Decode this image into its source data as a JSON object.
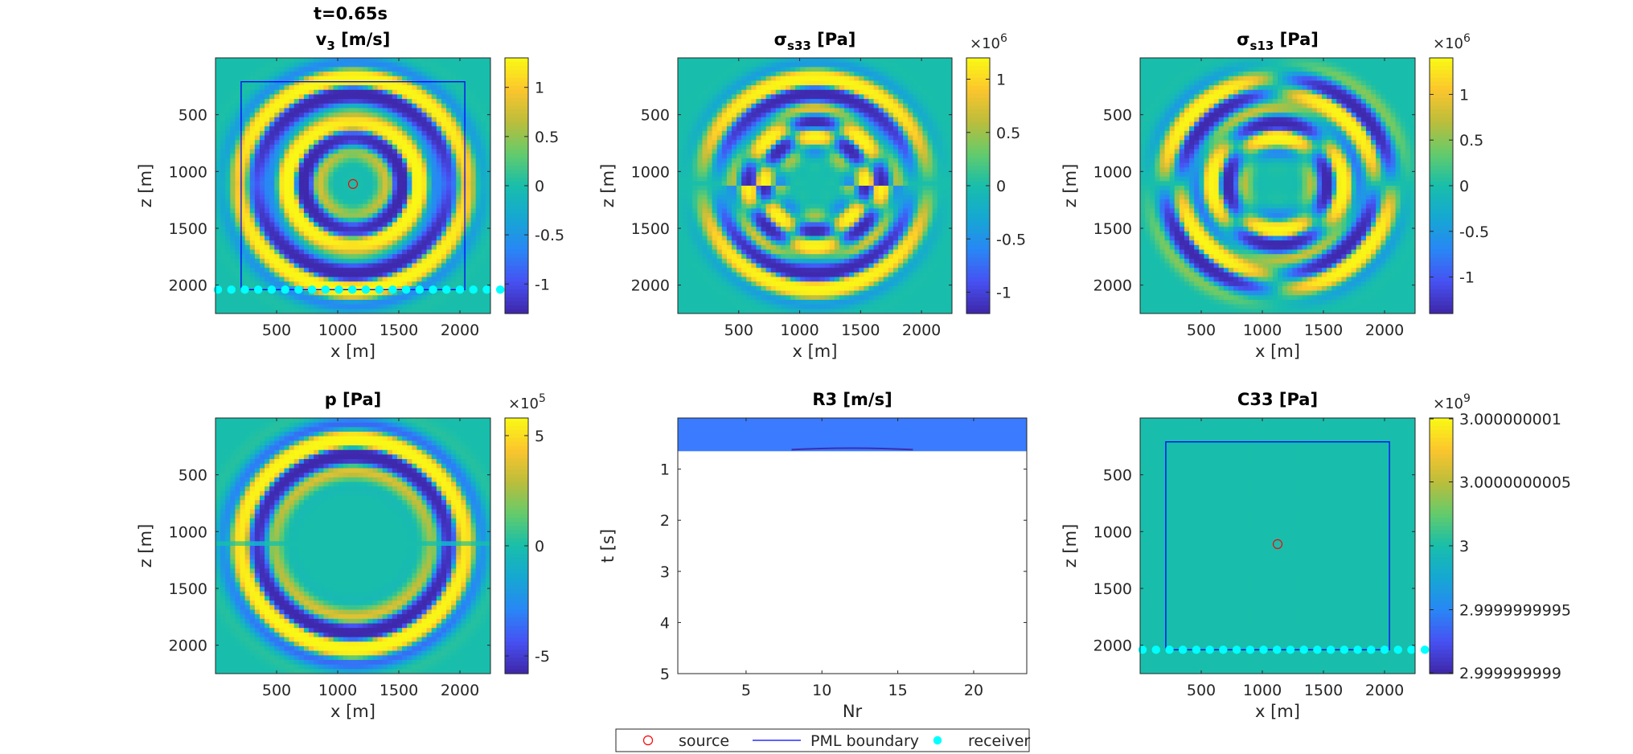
{
  "figure": {
    "title_line1": "t=0.65s",
    "legend": [
      {
        "label": "source",
        "marker": "circle-open",
        "color": "#ff0000"
      },
      {
        "label": "PML boundary",
        "marker": "line",
        "color": "#0000ff"
      },
      {
        "label": "receiver",
        "marker": "dot",
        "color": "#00ffff"
      }
    ],
    "colormap": "parula",
    "colors": {
      "background_field": "#1fbfa3",
      "source": "#ff0000",
      "pml": "#0000ff",
      "receiver": "#00ffff",
      "r3_band": "#3b7bff"
    }
  },
  "chart_data": [
    {
      "id": "v3",
      "type": "heatmap",
      "title": "v3 [m/s]",
      "title_main": "v",
      "title_sub": "3",
      "title_rest": " [m/s]",
      "xlabel": "x [m]",
      "ylabel": "z [m]",
      "xlim": [
        0,
        2250
      ],
      "ylim": [
        2250,
        0
      ],
      "xticks": [
        500,
        1000,
        1500,
        2000
      ],
      "yticks": [
        500,
        1000,
        1500,
        2000
      ],
      "colorbar": {
        "ticks": [
          1,
          0.5,
          0,
          -0.5,
          -1
        ],
        "labels": [
          "1",
          "0.5",
          "0",
          "-0.5",
          "-1"
        ],
        "range": [
          -1.3,
          1.3
        ],
        "exponent": ""
      },
      "field": "v3",
      "overlays": {
        "pml": [
          210,
          2040,
          210,
          2040
        ],
        "source": [
          1125,
          1110
        ],
        "receivers_z": 2040,
        "receivers_x0": 20,
        "receivers_dx": 110
      }
    },
    {
      "id": "s33",
      "type": "heatmap",
      "title": "σs33 [Pa]",
      "title_main": "σ",
      "title_sub": "s33",
      "title_rest": " [Pa]",
      "xlabel": "x [m]",
      "ylabel": "z [m]",
      "xlim": [
        0,
        2250
      ],
      "ylim": [
        2250,
        0
      ],
      "xticks": [
        500,
        1000,
        1500,
        2000
      ],
      "yticks": [
        500,
        1000,
        1500,
        2000
      ],
      "colorbar": {
        "ticks": [
          1,
          0.5,
          0,
          -0.5,
          -1
        ],
        "labels": [
          "1",
          "0.5",
          "0",
          "-0.5",
          "-1"
        ],
        "range": [
          -1.2,
          1.2
        ],
        "exponent": "6"
      },
      "field": "s33"
    },
    {
      "id": "s13",
      "type": "heatmap",
      "title": "σs13 [Pa]",
      "title_main": "σ",
      "title_sub": "s13",
      "title_rest": " [Pa]",
      "xlabel": "x [m]",
      "ylabel": "z [m]",
      "xlim": [
        0,
        2250
      ],
      "ylim": [
        2250,
        0
      ],
      "xticks": [
        500,
        1000,
        1500,
        2000
      ],
      "yticks": [
        500,
        1000,
        1500,
        2000
      ],
      "colorbar": {
        "ticks": [
          1,
          0.5,
          0,
          -0.5,
          -1
        ],
        "labels": [
          "1",
          "0.5",
          "0",
          "-0.5",
          "-1"
        ],
        "range": [
          -1.4,
          1.4
        ],
        "exponent": "6"
      },
      "field": "s13"
    },
    {
      "id": "p",
      "type": "heatmap",
      "title": "p [Pa]",
      "title_main": "p [Pa]",
      "title_sub": "",
      "title_rest": "",
      "xlabel": "x [m]",
      "ylabel": "z [m]",
      "xlim": [
        0,
        2250
      ],
      "ylim": [
        2250,
        0
      ],
      "xticks": [
        500,
        1000,
        1500,
        2000
      ],
      "yticks": [
        500,
        1000,
        1500,
        2000
      ],
      "colorbar": {
        "ticks": [
          5,
          0,
          -5
        ],
        "labels": [
          "5",
          "0",
          "-5"
        ],
        "range": [
          -5.8,
          5.8
        ],
        "exponent": "5"
      },
      "field": "p"
    },
    {
      "id": "r3",
      "type": "heatmap",
      "title": "R3 [m/s]",
      "title_main": "R3 [m/s]",
      "title_sub": "",
      "title_rest": "",
      "xlabel": "Nr",
      "ylabel": "t [s]",
      "xlim": [
        0.5,
        23.5
      ],
      "ylim": [
        5,
        0
      ],
      "xticks": [
        5,
        10,
        15,
        20
      ],
      "yticks": [
        1,
        2,
        3,
        4,
        5
      ],
      "recorded_until": 0.65
    },
    {
      "id": "c33",
      "type": "heatmap",
      "title": "C33 [Pa]",
      "title_main": "C33 [Pa]",
      "title_sub": "",
      "title_rest": "",
      "xlabel": "x [m]",
      "ylabel": "z [m]",
      "xlim": [
        0,
        2250
      ],
      "ylim": [
        2250,
        0
      ],
      "xticks": [
        500,
        1000,
        1500,
        2000
      ],
      "yticks": [
        500,
        1000,
        1500,
        2000
      ],
      "colorbar": {
        "ticks": [
          3.000000001,
          3.0000000005,
          3,
          2.9999999995,
          2.999999999
        ],
        "labels": [
          "3.000000001",
          "3.0000000005",
          "3",
          "2.9999999995",
          "2.999999999"
        ],
        "range": [
          2.999999999,
          3.000000001
        ],
        "exponent": "9"
      },
      "field": "const",
      "overlays": {
        "pml": [
          210,
          2040,
          210,
          2040
        ],
        "source": [
          1125,
          1110
        ],
        "receivers_z": 2040,
        "receivers_x0": 20,
        "receivers_dx": 110
      }
    }
  ]
}
